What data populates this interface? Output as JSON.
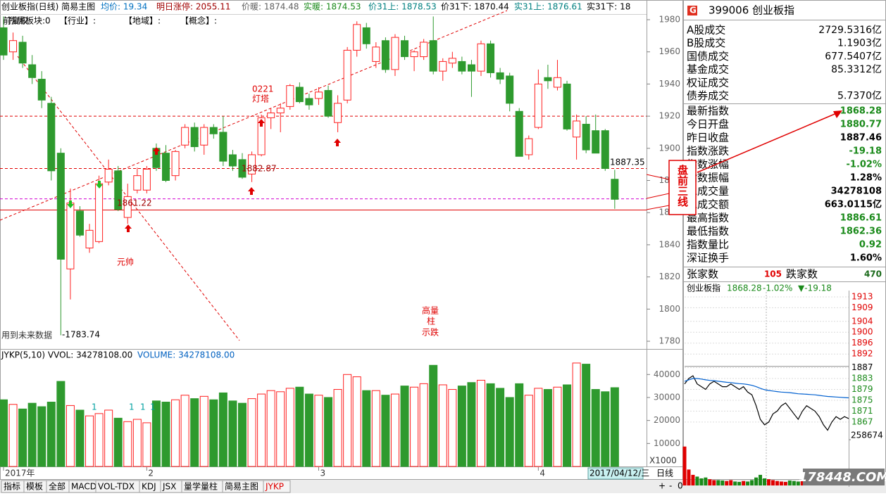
{
  "header": {
    "items": [
      {
        "text": "创业板指(日线) 简易主图",
        "color": "#000000"
      },
      {
        "text": "均价: 19.34",
        "color": "#0070c0"
      },
      {
        "text": "明日涨停: 2055.11",
        "color": "#a00000"
      },
      {
        "text": "价暖: 1874.48",
        "color": "#606060"
      },
      {
        "text": "实暖: 1874.53",
        "color": "#1a8a1a"
      },
      {
        "text": "价31上: 1878.53",
        "color": "#008080"
      },
      {
        "text": "价31下: 1870.44",
        "color": "#000000"
      },
      {
        "text": "实31上: 1876.61",
        "color": "#008080"
      },
      {
        "text": "实31下: 18",
        "color": "#000000"
      }
    ],
    "subitems": [
      "前复权",
      "所属板块:0",
      "【行业】:",
      "【地域】:",
      "【概念】:"
    ]
  },
  "chart_data": [
    {
      "type": "candlestick",
      "ylim": [
        1775.2,
        1983.5
      ],
      "yticks": [
        1780,
        1800,
        1820,
        1840,
        1860,
        1880,
        1900,
        1920,
        1940,
        1960,
        1980
      ],
      "up_color": "#ff2020",
      "down_color": "#2e9a2e",
      "categories": [
        "2017年",
        null,
        null,
        null,
        null,
        null,
        null,
        null,
        null,
        null,
        null,
        null,
        null,
        null,
        null,
        "2",
        null,
        null,
        null,
        null,
        null,
        null,
        null,
        null,
        null,
        null,
        null,
        null,
        null,
        null,
        null,
        null,
        null,
        "3",
        null,
        null,
        null,
        null,
        null,
        null,
        null,
        null,
        null,
        null,
        null,
        null,
        null,
        null,
        null,
        null,
        null,
        null,
        null,
        null,
        null,
        null,
        "4",
        null,
        null,
        null,
        null,
        null,
        null,
        null,
        null
      ],
      "open": [
        1975,
        1960,
        1966,
        1952,
        1943,
        1928,
        1897,
        1825,
        1861,
        1838,
        1842,
        1879,
        1886,
        1857,
        1874,
        1874,
        1900,
        1897,
        1883,
        1902,
        1913,
        1902,
        1913,
        1910,
        1896,
        1893,
        1884,
        1896,
        1919,
        1922,
        1926,
        1938,
        1931,
        1931,
        1936,
        1916,
        1930,
        1961,
        1975,
        1954,
        1967,
        1949,
        1967,
        1957,
        1957,
        1967,
        1948,
        1953,
        1954,
        1952,
        1948,
        1965,
        1947,
        1945,
        1923,
        1896,
        1913,
        1944,
        1938,
        1940,
        1907,
        1915,
        1911,
        1911,
        1880.77
      ],
      "high": [
        1982,
        1972,
        1970,
        1958,
        1948,
        1932,
        1900,
        1875,
        1864,
        1853,
        1883,
        1893,
        1889,
        1878,
        1888,
        1889,
        1903,
        1902,
        1899,
        1915,
        1916,
        1915,
        1915,
        1920,
        1899,
        1897,
        1898,
        1921,
        1925,
        1928,
        1940,
        1941,
        1934,
        1938,
        1939,
        1933,
        1963,
        1979,
        1978,
        1966,
        1969,
        1971,
        1970,
        1961,
        1968,
        1982,
        1956,
        1960,
        1957,
        1955,
        1967,
        1967,
        1950,
        1947,
        1925,
        1908,
        1949,
        1952,
        1955,
        1942,
        1921,
        1920,
        1921,
        1912,
        1886.61
      ],
      "low": [
        1955,
        1955,
        1950,
        1940,
        1925,
        1880,
        1783.74,
        1806,
        1845,
        1835,
        1841,
        1877,
        1861,
        1853,
        1872,
        1872,
        1886,
        1879,
        1880,
        1900,
        1898,
        1896,
        1906,
        1889,
        1886,
        1881,
        1879,
        1895,
        1912,
        1910,
        1924,
        1928,
        1924,
        1927,
        1919,
        1910,
        1928,
        1957,
        1962,
        1950,
        1947,
        1945,
        1955,
        1948,
        1955,
        1946,
        1942,
        1950,
        1946,
        1932,
        1945,
        1944,
        1940,
        1923,
        1895,
        1893,
        1912,
        1937,
        1936,
        1911,
        1893,
        1897,
        1897,
        1886,
        1862.36
      ],
      "close": [
        1958,
        1967,
        1953,
        1944,
        1930,
        1886,
        1831,
        1866,
        1846,
        1849,
        1878,
        1887,
        1862,
        1870,
        1883,
        1887,
        1888,
        1880,
        1898,
        1913,
        1901,
        1913,
        1909,
        1892,
        1889,
        1882,
        1896,
        1919,
        1922,
        1925,
        1939,
        1929,
        1927,
        1935,
        1920,
        1928,
        1961,
        1977,
        1965,
        1963,
        1949,
        1969,
        1957,
        1960,
        1966,
        1948,
        1954,
        1956,
        1948,
        1948,
        1965,
        1947,
        1943,
        1928,
        1895,
        1906,
        1940,
        1942,
        1944,
        1912,
        1917,
        1899,
        1897,
        1887.46,
        1868.28
      ],
      "hlines": [
        {
          "value": 1920,
          "color": "#e00000",
          "dash": true
        },
        {
          "value": 1887.46,
          "color": "#e00000",
          "dash": true
        },
        {
          "value": 1868.6,
          "color": "#d000d0",
          "dash": true
        },
        {
          "value": 1861.6,
          "color": "#e00000",
          "dash": false
        }
      ],
      "annotations": [
        "0221",
        "灯塔",
        "元帅",
        "高量",
        "柱",
        "示跌",
        "用到未来数据",
        "1882.87",
        "1861.22",
        "1887.35",
        "-1783.74"
      ],
      "callout": "盘前三线",
      "cursor_date": "2017/04/12/三"
    },
    {
      "type": "bar",
      "legend_texts": [
        "JYKP(5,10) VVOL: 34278108.00",
        "VOLUME: 34278108.00"
      ],
      "unit_label": "X1000",
      "ylim": [
        0,
        50800
      ],
      "yticks": [
        10000,
        20000,
        30000,
        40000
      ],
      "values": [
        29000,
        27000,
        25000,
        27500,
        26000,
        28000,
        37000,
        26500,
        24500,
        22000,
        23000,
        24500,
        21000,
        19500,
        20500,
        19000,
        28500,
        28000,
        29000,
        31000,
        29500,
        30500,
        29000,
        32000,
        28500,
        27500,
        29500,
        31500,
        33000,
        32500,
        34000,
        34500,
        31500,
        31000,
        30000,
        33500,
        40000,
        39000,
        33000,
        33000,
        31000,
        31500,
        35000,
        34500,
        36000,
        44000,
        35500,
        33500,
        35000,
        36500,
        37500,
        36000,
        34000,
        30000,
        36000,
        31000,
        34000,
        33500,
        34500,
        35500,
        45000,
        44500,
        33500,
        32500,
        34278
      ],
      "volume_marks": [
        "1",
        "1",
        "1",
        "1"
      ]
    },
    {
      "type": "line",
      "title_items": [
        {
          "text": "创业板指",
          "color": "#000000"
        },
        {
          "text": "1868.28",
          "color": "#1a8a1a"
        },
        {
          "text": "-1.02%",
          "color": "#1a8a1a"
        },
        {
          "text": "▼-19.18",
          "color": "#1a8a1a"
        }
      ],
      "ylim": [
        1861.8,
        1914.8
      ],
      "yticks": [
        1913,
        1909,
        1904,
        1900,
        1896,
        1892,
        1887,
        1883,
        1879,
        1875,
        1871,
        1867
      ],
      "base": 1887.46,
      "up_color": "#e00000",
      "down_color": "#1a8a1a",
      "series": [
        {
          "color": "#000000",
          "values": [
            1881,
            1883,
            1884,
            1881,
            1880,
            1879,
            1881,
            1882,
            1881,
            1880,
            1880,
            1881,
            1880,
            1879,
            1880,
            1878,
            1877,
            1873,
            1868,
            1866,
            1867,
            1870,
            1871,
            1873,
            1874,
            1872,
            1870,
            1868,
            1871,
            1873,
            1872,
            1871,
            1869,
            1866,
            1864,
            1867,
            1869,
            1868,
            1869,
            1868.28
          ]
        },
        {
          "color": "#0060d0",
          "values": [
            1882,
            1882.5,
            1883,
            1883,
            1882.8,
            1882.5,
            1882.3,
            1882.2,
            1882,
            1881.8,
            1881.6,
            1881.5,
            1881.3,
            1881.1,
            1881,
            1880.8,
            1880.5,
            1880,
            1879.4,
            1878.9,
            1878.6,
            1878.4,
            1878.2,
            1878,
            1877.9,
            1877.8,
            1877.6,
            1877.4,
            1877.3,
            1877.2,
            1877.1,
            1877,
            1876.8,
            1876.6,
            1876.4,
            1876.3,
            1876.2,
            1876.1,
            1876,
            1875.9
          ]
        }
      ]
    },
    {
      "type": "bar",
      "ylim": [
        0,
        258674
      ],
      "yticks": [
        258674
      ],
      "values": [
        220000,
        90000,
        60000,
        50000,
        40000,
        45000,
        35000,
        30000,
        30000,
        28000,
        25000,
        30000,
        22000,
        20000,
        25000,
        22000,
        30000,
        45000,
        60000,
        40000,
        35000,
        30000,
        25000,
        22000,
        20000,
        28000,
        25000,
        22000,
        24000,
        20000,
        22000,
        25000,
        30000,
        35000,
        40000,
        30000,
        25000,
        22000,
        28000,
        60000
      ]
    }
  ],
  "quote": {
    "code": "G",
    "title": "399006 创业板指",
    "rows": [
      {
        "label": "A股成交",
        "value": "2729.5316亿"
      },
      {
        "label": "B股成交",
        "value": "1.1903亿"
      },
      {
        "label": "国债成交",
        "value": "677.5407亿"
      },
      {
        "label": "基金成交",
        "value": "85.3312亿"
      },
      {
        "label": "权证成交"
      },
      {
        "label": "债券成交",
        "value": "5.7370亿"
      }
    ],
    "index_rows": [
      {
        "label": "最新指数",
        "value": "1868.28",
        "color": "#1a8a1a"
      },
      {
        "label": "今日开盘",
        "value": "1880.77",
        "color": "#1a8a1a"
      },
      {
        "label": "昨日收盘",
        "value": "1887.46",
        "color": "#000000"
      },
      {
        "label": "指数涨跌",
        "value": "-19.18",
        "color": "#1a8a1a"
      },
      {
        "label": "指数涨幅",
        "value": "-1.02%",
        "color": "#1a8a1a"
      },
      {
        "label": "指数振幅",
        "value": "1.28%",
        "color": "#000000"
      },
      {
        "label": "总成交量",
        "value": "34278108",
        "color": "#000000"
      },
      {
        "label": "总成交额",
        "value": "663.0115亿",
        "color": "#000000"
      },
      {
        "label": "最高指数",
        "value": "1886.61",
        "color": "#1a8a1a"
      },
      {
        "label": "最低指数",
        "value": "1862.36",
        "color": "#1a8a1a"
      },
      {
        "label": "指数量比",
        "value": "0.92",
        "color": "#1a8a1a"
      },
      {
        "label": "深证换手",
        "value": "1.60%",
        "color": "#000000"
      }
    ],
    "breadth": {
      "up_label": "张家数",
      "up": "105",
      "down_label": "跌家数",
      "down": "470"
    }
  },
  "tabs": [
    "指标",
    "模板",
    "全部",
    "MACD",
    "VOL-TDX",
    "KDJ",
    "JSX",
    "量学量柱",
    "简易主图",
    "JYKP"
  ],
  "period": "日线",
  "zoom_buttons": [
    "+",
    "-",
    "0"
  ],
  "watermark": "178448.COM"
}
